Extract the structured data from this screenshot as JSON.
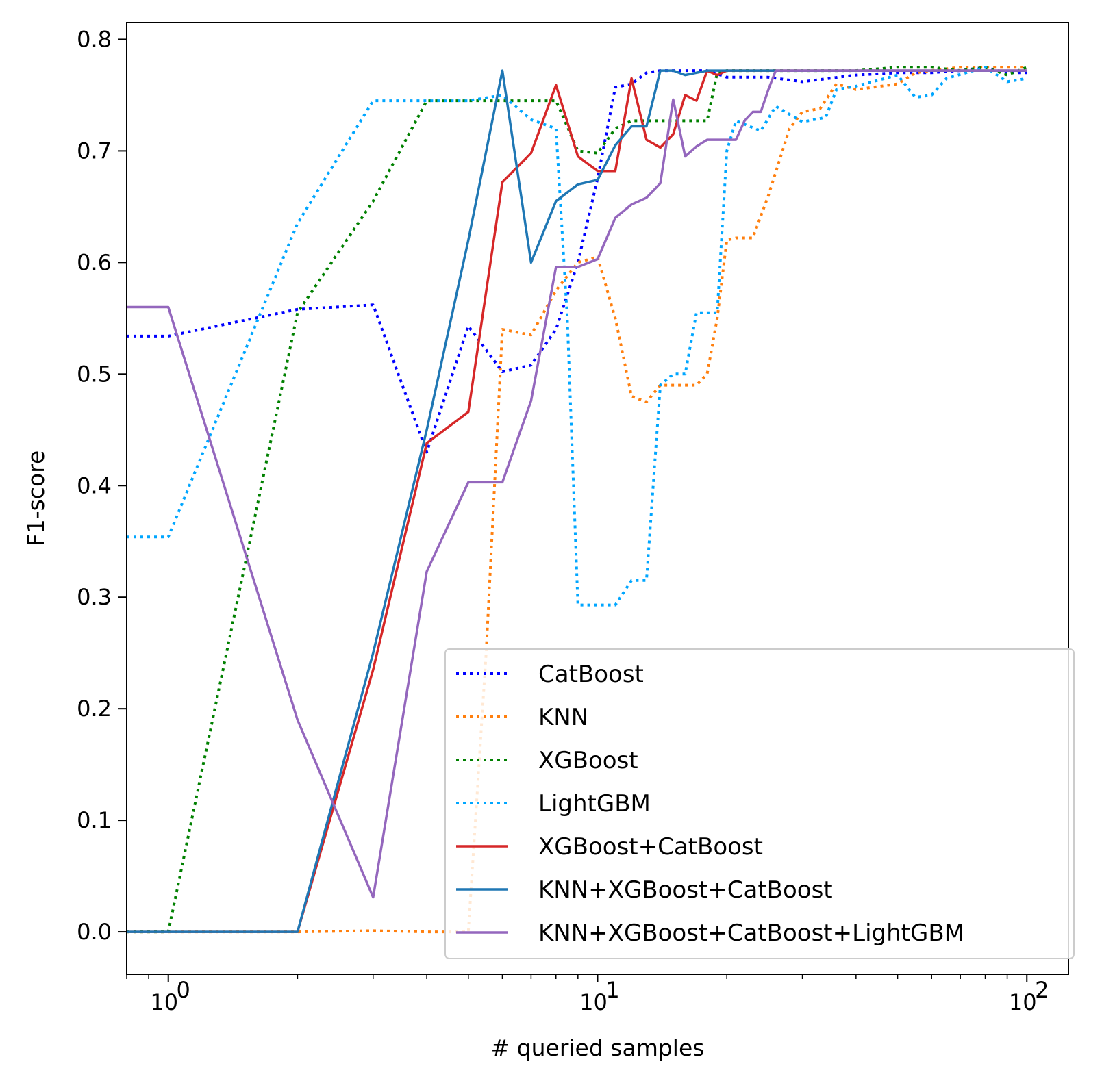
{
  "chart_data": {
    "type": "line",
    "title": "",
    "xlabel": "# queried samples",
    "ylabel": "F1-score",
    "xscale": "log",
    "xlim": [
      0.8,
      125
    ],
    "ylim": [
      -0.038,
      0.815
    ],
    "x_ticks": [
      {
        "value": 1,
        "base": "10",
        "exp": "0"
      },
      {
        "value": 10,
        "base": "10",
        "exp": "1"
      },
      {
        "value": 100,
        "base": "10",
        "exp": "2"
      }
    ],
    "y_ticks": [
      {
        "value": 0.0,
        "label": "0.0"
      },
      {
        "value": 0.1,
        "label": "0.1"
      },
      {
        "value": 0.2,
        "label": "0.2"
      },
      {
        "value": 0.3,
        "label": "0.3"
      },
      {
        "value": 0.4,
        "label": "0.4"
      },
      {
        "value": 0.5,
        "label": "0.5"
      },
      {
        "value": 0.6,
        "label": "0.6"
      },
      {
        "value": 0.7,
        "label": "0.7"
      },
      {
        "value": 0.8,
        "label": "0.8"
      }
    ],
    "grid": false,
    "legend_position": "lower-right",
    "series": [
      {
        "name": "CatBoost",
        "color": "#0000ff",
        "style": "dotted",
        "points": [
          [
            0.8,
            0.534
          ],
          [
            1,
            0.534
          ],
          [
            2,
            0.558
          ],
          [
            3,
            0.562
          ],
          [
            4,
            0.43
          ],
          [
            5,
            0.543
          ],
          [
            6,
            0.502
          ],
          [
            7,
            0.508
          ],
          [
            8,
            0.54
          ],
          [
            9,
            0.6
          ],
          [
            10,
            0.675
          ],
          [
            11,
            0.757
          ],
          [
            12,
            0.76
          ],
          [
            13,
            0.77
          ],
          [
            14,
            0.772
          ],
          [
            16,
            0.772
          ],
          [
            18,
            0.772
          ],
          [
            20,
            0.766
          ],
          [
            25,
            0.766
          ],
          [
            30,
            0.762
          ],
          [
            40,
            0.768
          ],
          [
            50,
            0.77
          ],
          [
            60,
            0.77
          ],
          [
            70,
            0.772
          ],
          [
            80,
            0.775
          ],
          [
            90,
            0.77
          ],
          [
            100,
            0.77
          ]
        ]
      },
      {
        "name": "KNN",
        "color": "#ff7f0e",
        "style": "dotted",
        "points": [
          [
            0.8,
            0
          ],
          [
            1,
            0
          ],
          [
            2,
            0
          ],
          [
            3,
            0.001
          ],
          [
            4,
            0
          ],
          [
            5,
            0
          ],
          [
            5.5,
            0.25
          ],
          [
            6,
            0.54
          ],
          [
            7,
            0.535
          ],
          [
            8,
            0.575
          ],
          [
            9,
            0.6
          ],
          [
            10,
            0.605
          ],
          [
            11,
            0.55
          ],
          [
            12,
            0.48
          ],
          [
            13,
            0.475
          ],
          [
            14,
            0.49
          ],
          [
            16,
            0.49
          ],
          [
            17,
            0.49
          ],
          [
            18,
            0.5
          ],
          [
            19,
            0.55
          ],
          [
            20,
            0.62
          ],
          [
            21,
            0.622
          ],
          [
            23,
            0.622
          ],
          [
            25,
            0.66
          ],
          [
            28,
            0.72
          ],
          [
            30,
            0.735
          ],
          [
            33,
            0.738
          ],
          [
            36,
            0.76
          ],
          [
            40,
            0.755
          ],
          [
            50,
            0.76
          ],
          [
            55,
            0.77
          ],
          [
            60,
            0.772
          ],
          [
            70,
            0.775
          ],
          [
            80,
            0.775
          ],
          [
            100,
            0.775
          ]
        ]
      },
      {
        "name": "XGBoost",
        "color": "#008000",
        "style": "dotted",
        "points": [
          [
            0.8,
            0
          ],
          [
            1,
            0
          ],
          [
            2,
            0.555
          ],
          [
            3,
            0.655
          ],
          [
            4,
            0.745
          ],
          [
            5,
            0.745
          ],
          [
            6,
            0.745
          ],
          [
            7,
            0.745
          ],
          [
            8,
            0.745
          ],
          [
            9,
            0.7
          ],
          [
            10,
            0.698
          ],
          [
            11,
            0.72
          ],
          [
            12,
            0.727
          ],
          [
            14,
            0.727
          ],
          [
            16,
            0.727
          ],
          [
            18,
            0.727
          ],
          [
            19,
            0.77
          ],
          [
            20,
            0.772
          ],
          [
            30,
            0.772
          ],
          [
            40,
            0.772
          ],
          [
            50,
            0.775
          ],
          [
            60,
            0.775
          ],
          [
            70,
            0.772
          ],
          [
            80,
            0.775
          ],
          [
            90,
            0.768
          ],
          [
            100,
            0.775
          ]
        ]
      },
      {
        "name": "LightGBM",
        "color": "#00a6ff",
        "style": "dotted",
        "points": [
          [
            0.8,
            0.354
          ],
          [
            1,
            0.354
          ],
          [
            2,
            0.635
          ],
          [
            3,
            0.745
          ],
          [
            4,
            0.745
          ],
          [
            5,
            0.745
          ],
          [
            6,
            0.75
          ],
          [
            7,
            0.728
          ],
          [
            8,
            0.72
          ],
          [
            8.5,
            0.55
          ],
          [
            9,
            0.293
          ],
          [
            10,
            0.293
          ],
          [
            11,
            0.293
          ],
          [
            12,
            0.315
          ],
          [
            13,
            0.315
          ],
          [
            14,
            0.49
          ],
          [
            15,
            0.5
          ],
          [
            16,
            0.5
          ],
          [
            17,
            0.555
          ],
          [
            19,
            0.555
          ],
          [
            20,
            0.7
          ],
          [
            21,
            0.727
          ],
          [
            24,
            0.718
          ],
          [
            26,
            0.74
          ],
          [
            30,
            0.726
          ],
          [
            34,
            0.73
          ],
          [
            36,
            0.755
          ],
          [
            40,
            0.758
          ],
          [
            50,
            0.768
          ],
          [
            55,
            0.748
          ],
          [
            60,
            0.75
          ],
          [
            65,
            0.765
          ],
          [
            80,
            0.775
          ],
          [
            90,
            0.762
          ],
          [
            100,
            0.765
          ]
        ]
      },
      {
        "name": "XGBoost+CatBoost",
        "color": "#d62728",
        "style": "solid",
        "points": [
          [
            0.8,
            0
          ],
          [
            1,
            0
          ],
          [
            2,
            0
          ],
          [
            3,
            0.235
          ],
          [
            4,
            0.438
          ],
          [
            5,
            0.466
          ],
          [
            6,
            0.672
          ],
          [
            7,
            0.698
          ],
          [
            8,
            0.759
          ],
          [
            9,
            0.695
          ],
          [
            10,
            0.682
          ],
          [
            11,
            0.682
          ],
          [
            12,
            0.765
          ],
          [
            13,
            0.71
          ],
          [
            14,
            0.703
          ],
          [
            15,
            0.715
          ],
          [
            16,
            0.75
          ],
          [
            17,
            0.745
          ],
          [
            18,
            0.772
          ],
          [
            19,
            0.768
          ],
          [
            20,
            0.772
          ],
          [
            30,
            0.772
          ],
          [
            100,
            0.772
          ]
        ]
      },
      {
        "name": "KNN+XGBoost+CatBoost",
        "color": "#1f77b4",
        "style": "solid",
        "points": [
          [
            0.8,
            0
          ],
          [
            1,
            0
          ],
          [
            2,
            0
          ],
          [
            3,
            0.25
          ],
          [
            4,
            0.45
          ],
          [
            5,
            0.62
          ],
          [
            6,
            0.772
          ],
          [
            7,
            0.6
          ],
          [
            8,
            0.655
          ],
          [
            9,
            0.67
          ],
          [
            10,
            0.674
          ],
          [
            11,
            0.705
          ],
          [
            12,
            0.722
          ],
          [
            13,
            0.722
          ],
          [
            14,
            0.772
          ],
          [
            15,
            0.772
          ],
          [
            16,
            0.768
          ],
          [
            18,
            0.772
          ],
          [
            20,
            0.772
          ],
          [
            27,
            0.772
          ],
          [
            30,
            0.772
          ],
          [
            100,
            0.772
          ]
        ]
      },
      {
        "name": "KNN+XGBoost+CatBoost+LightGBM",
        "color": "#9467bd",
        "style": "solid",
        "points": [
          [
            0.8,
            0.56
          ],
          [
            1,
            0.56
          ],
          [
            2,
            0.19
          ],
          [
            3,
            0.031
          ],
          [
            4,
            0.323
          ],
          [
            5,
            0.403
          ],
          [
            6,
            0.403
          ],
          [
            7,
            0.476
          ],
          [
            8,
            0.596
          ],
          [
            9,
            0.596
          ],
          [
            10,
            0.603
          ],
          [
            11,
            0.64
          ],
          [
            12,
            0.652
          ],
          [
            13,
            0.658
          ],
          [
            14,
            0.671
          ],
          [
            15,
            0.746
          ],
          [
            16,
            0.695
          ],
          [
            17,
            0.704
          ],
          [
            18,
            0.71
          ],
          [
            20,
            0.71
          ],
          [
            21,
            0.71
          ],
          [
            22,
            0.727
          ],
          [
            23,
            0.735
          ],
          [
            24,
            0.735
          ],
          [
            25,
            0.755
          ],
          [
            26,
            0.772
          ],
          [
            30,
            0.772
          ],
          [
            100,
            0.772
          ]
        ]
      }
    ]
  }
}
